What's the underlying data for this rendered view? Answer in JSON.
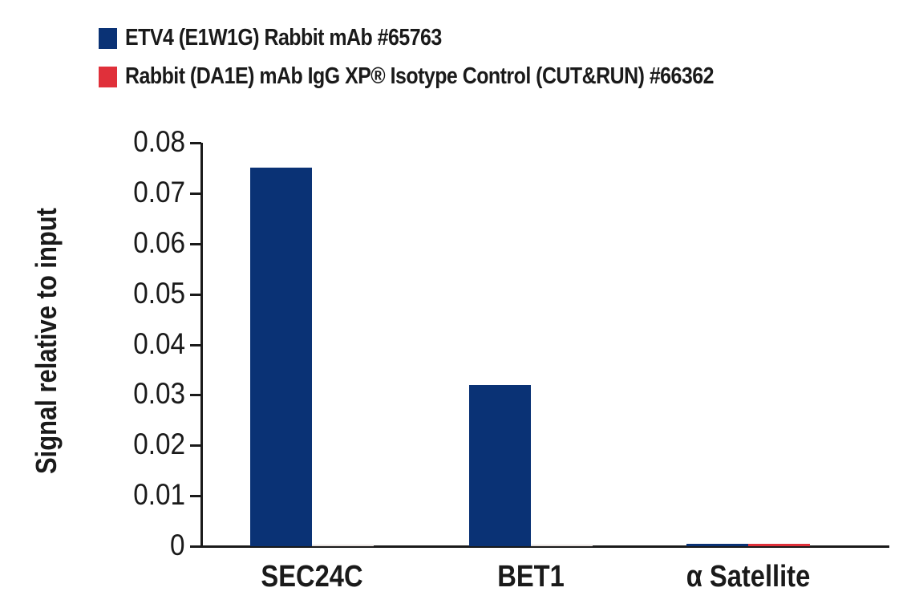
{
  "legend": {
    "items": [
      {
        "label": "ETV4 (E1W1G) Rabbit mAb #65763",
        "color": "#0a3275"
      },
      {
        "label": "Rabbit (DA1E) mAb IgG XP® Isotype Control (CUT&RUN) #66362",
        "color": "#e0303a"
      }
    ]
  },
  "axes": {
    "ylabel": "Signal relative to input",
    "yticks": [
      "0",
      "0.01",
      "0.02",
      "0.03",
      "0.04",
      "0.05",
      "0.06",
      "0.07",
      "0.08"
    ],
    "categories": [
      "SEC24C",
      "BET1",
      "α Satellite"
    ]
  },
  "chart_data": {
    "type": "bar",
    "title": "",
    "xlabel": "",
    "ylabel": "Signal relative to input",
    "ylim": [
      0,
      0.08
    ],
    "yticks": [
      0,
      0.01,
      0.02,
      0.03,
      0.04,
      0.05,
      0.06,
      0.07,
      0.08
    ],
    "grid": false,
    "legend_position": "top-left",
    "categories": [
      "SEC24C",
      "BET1",
      "α Satellite"
    ],
    "series": [
      {
        "name": "ETV4 (E1W1G) Rabbit mAb #65763",
        "color": "#0a3275",
        "values": [
          0.075,
          0.032,
          0.0005
        ]
      },
      {
        "name": "Rabbit (DA1E) mAb IgG XP® Isotype Control (CUT&RUN) #66362",
        "color": "#e0303a",
        "values": [
          0.0002,
          0.0002,
          0.0005
        ]
      }
    ]
  }
}
